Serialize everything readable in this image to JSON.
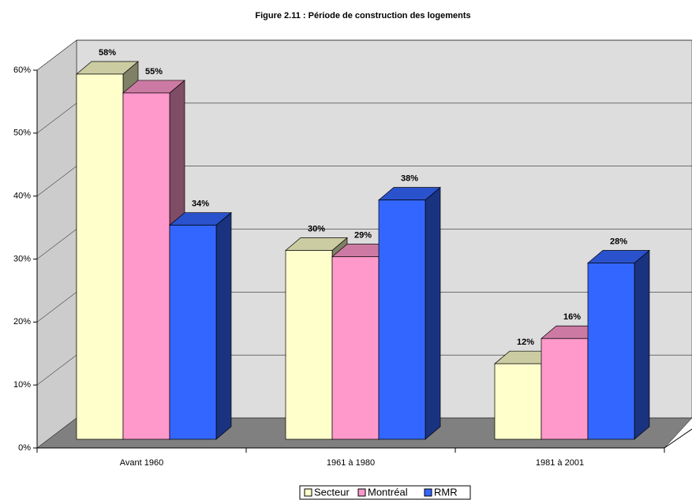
{
  "chart_data": {
    "type": "bar3d",
    "title": "Figure 2.11 : Période de construction des logements",
    "categories": [
      "Avant 1960",
      "1961 à 1980",
      "1981 à 2001"
    ],
    "series": [
      {
        "name": "Secteur",
        "color": "#ffffcc",
        "values": [
          58,
          30,
          12
        ],
        "value_labels": [
          "58%",
          "30%",
          "12%"
        ]
      },
      {
        "name": "Montréal",
        "color": "#ff99cc",
        "values": [
          55,
          29,
          16
        ],
        "value_labels": [
          "55%",
          "29%",
          "16%"
        ]
      },
      {
        "name": "RMR",
        "color": "#3366ff",
        "values": [
          34,
          38,
          28
        ],
        "value_labels": [
          "34%",
          "38%",
          "28%"
        ]
      }
    ],
    "ylim": [
      0,
      60
    ],
    "yticks": [
      {
        "value": 0,
        "label": "0%"
      },
      {
        "value": 10,
        "label": "10%"
      },
      {
        "value": 20,
        "label": "20%"
      },
      {
        "value": 30,
        "label": "30%"
      },
      {
        "value": 40,
        "label": "40%"
      },
      {
        "value": 50,
        "label": "50%"
      },
      {
        "value": 60,
        "label": "60%"
      }
    ],
    "grid": true,
    "legend": "bottom"
  }
}
